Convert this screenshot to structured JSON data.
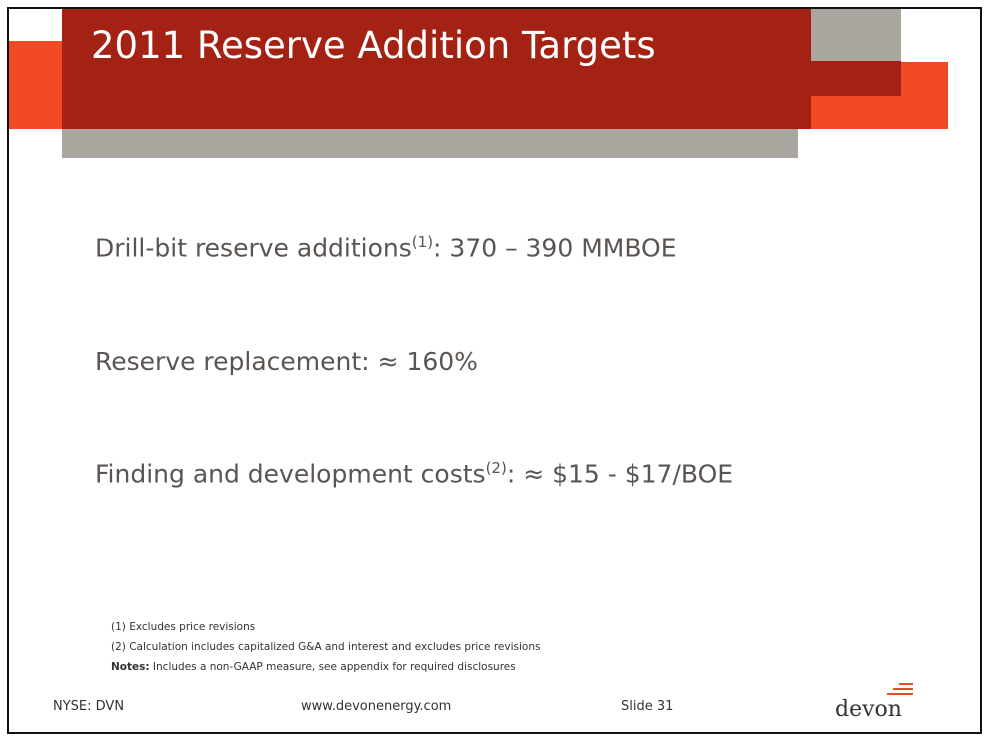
{
  "slide": {
    "title": "2011 Reserve Addition Targets",
    "bullets": [
      {
        "text": "Drill-bit reserve additions",
        "sup": "(1)",
        "rest": ": 370 – 390 MMBOE"
      },
      {
        "text": "Reserve replacement: ≈ 160%"
      },
      {
        "text": "Finding and development costs",
        "sup": "(2)",
        "rest": ": ≈ $15 - $17/BOE"
      }
    ],
    "notes": [
      "(1) Excludes price revisions",
      "(2) Calculation includes capitalized G&A and interest and excludes price revisions"
    ],
    "notes_label": "Notes:",
    "notes_text": " Includes a non-GAAP measure, see appendix for required disclosures"
  },
  "footer": {
    "ticker": "NYSE: DVN",
    "website": "www.devonenergy.com",
    "slide_number": "Slide 31",
    "logo_text": "devon"
  },
  "colors": {
    "dark_red": "#a32213",
    "orange": "#f14a24",
    "gray": "#aaa59f"
  }
}
